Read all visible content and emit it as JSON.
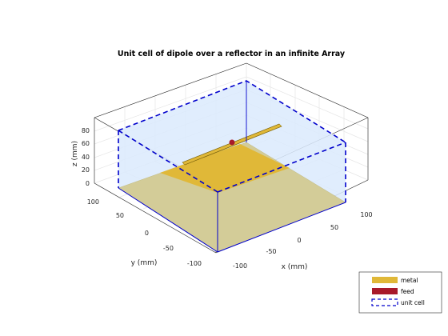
{
  "figure": {
    "title": "Unit cell of dipole over a reflector in an infinite Array",
    "axes": {
      "x_label": "x (mm)",
      "y_label": "y (mm)",
      "z_label": "z (mm)",
      "x_ticks": [
        "-100",
        "-50",
        "0",
        "50",
        "100"
      ],
      "y_ticks": [
        "100",
        "50",
        "0",
        "-50",
        "-100"
      ],
      "z_ticks": [
        "0",
        "20",
        "40",
        "60",
        "80"
      ]
    },
    "legend": {
      "placement": "bottom-right",
      "items": [
        {
          "label": "metal",
          "color": "#e0b838"
        },
        {
          "label": "feed",
          "color": "#a8192a"
        },
        {
          "label": "unit cell",
          "color": "#0000cc"
        }
      ]
    },
    "colors": {
      "metal": "#e0b838",
      "metal_ground": "#d3cc98",
      "feed": "#a8192a",
      "unit_cell": "#0000cc",
      "cell_fill": "#dbeafd"
    }
  }
}
